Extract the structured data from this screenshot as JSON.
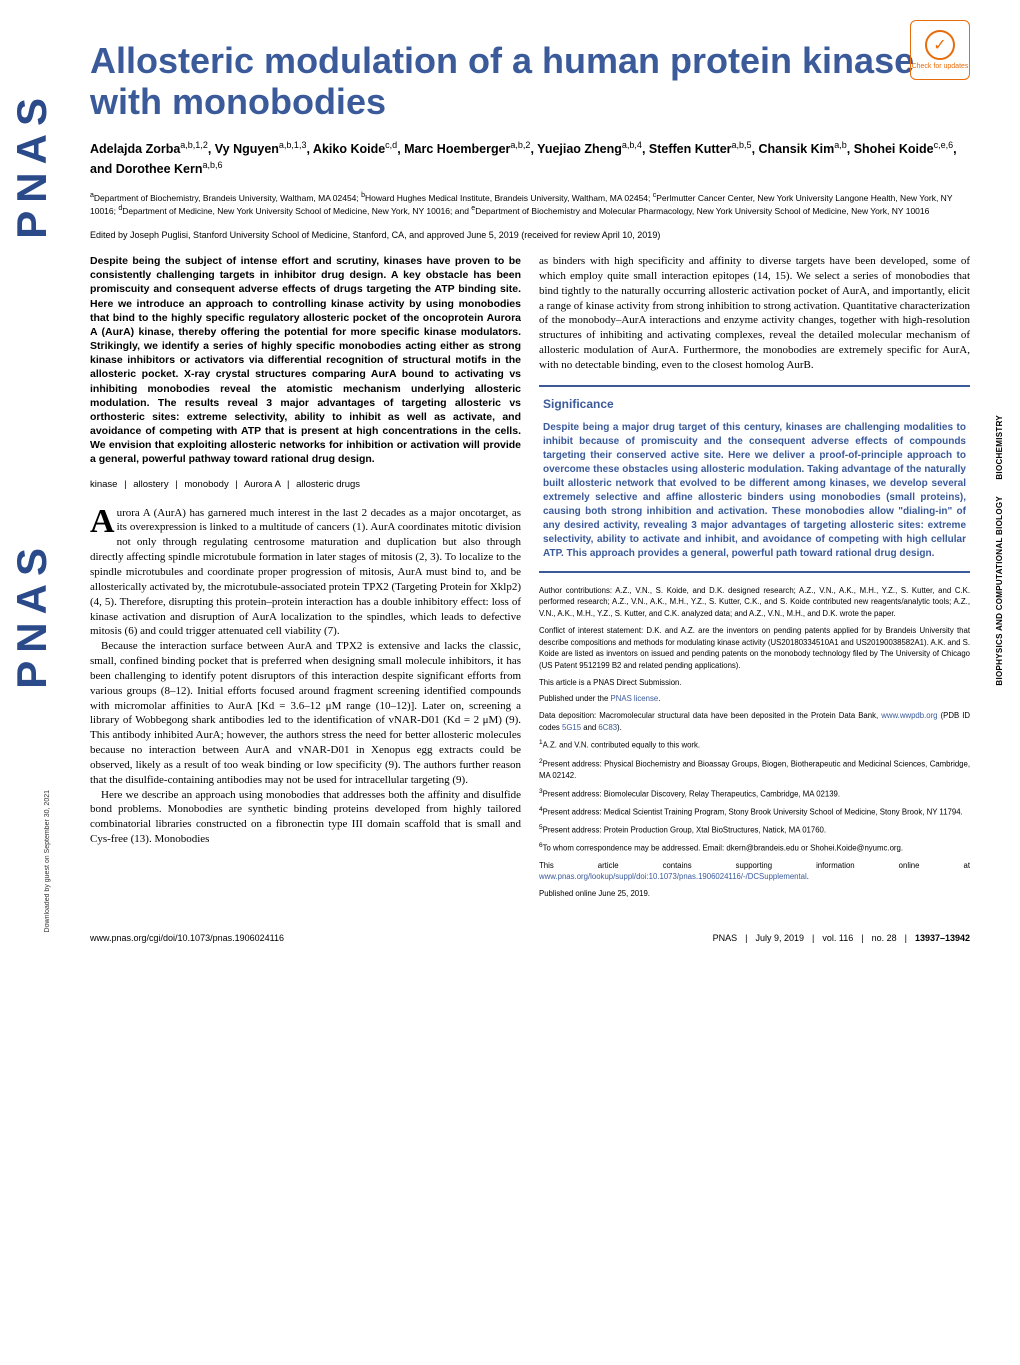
{
  "checkUpdates": "Check for updates",
  "sideLogo": "PNAS",
  "downloadNote": "Downloaded by guest on September 30, 2021",
  "title": "Allosteric modulation of a human protein kinase with monobodies",
  "authorsHtml": "Adelajda Zorba<sup>a,b,1,2</sup>, Vy Nguyen<sup>a,b,1,3</sup>, Akiko Koide<sup>c,d</sup>, Marc Hoemberger<sup>a,b,2</sup>, Yuejiao Zheng<sup>a,b,4</sup>, Steffen Kutter<sup>a,b,5</sup>, Chansik Kim<sup>a,b</sup>, Shohei Koide<sup>c,e,6</sup>, and Dorothee Kern<sup>a,b,6</sup>",
  "affiliationsHtml": "<sup>a</sup>Department of Biochemistry, Brandeis University, Waltham, MA 02454; <sup>b</sup>Howard Hughes Medical Institute, Brandeis University, Waltham, MA 02454; <sup>c</sup>Perlmutter Cancer Center, New York University Langone Health, New York, NY 10016; <sup>d</sup>Department of Medicine, New York University School of Medicine, New York, NY 10016; and <sup>e</sup>Department of Biochemistry and Molecular Pharmacology, New York University School of Medicine, New York, NY 10016",
  "editedBy": "Edited by Joseph Puglisi, Stanford University School of Medicine, Stanford, CA, and approved June 5, 2019 (received for review April 10, 2019)",
  "abstract": "Despite being the subject of intense effort and scrutiny, kinases have proven to be consistently challenging targets in inhibitor drug design. A key obstacle has been promiscuity and consequent adverse effects of drugs targeting the ATP binding site. Here we introduce an approach to controlling kinase activity by using monobodies that bind to the highly specific regulatory allosteric pocket of the oncoprotein Aurora A (AurA) kinase, thereby offering the potential for more specific kinase modulators. Strikingly, we identify a series of highly specific monobodies acting either as strong kinase inhibitors or activators via differential recognition of structural motifs in the allosteric pocket. X-ray crystal structures comparing AurA bound to activating vs inhibiting monobodies reveal the atomistic mechanism underlying allosteric modulation. The results reveal 3 major advantages of targeting allosteric vs orthosteric sites: extreme selectivity, ability to inhibit as well as activate, and avoidance of competing with ATP that is present at high concentrations in the cells. We envision that exploiting allosteric networks for inhibition or activation will provide a general, powerful pathway toward rational drug design.",
  "keywords": [
    "kinase",
    "allostery",
    "monobody",
    "Aurora A",
    "allosteric drugs"
  ],
  "introFirst": "urora A (AurA) has garnered much interest in the last 2 decades as a major oncotarget, as its overexpression is linked to a multitude of cancers (1). AurA coordinates mitotic division not only through regulating centrosome maturation and duplication but also through directly affecting spindle microtubule formation in later stages of mitosis (2, 3). To localize to the spindle microtubules and coordinate proper progression of mitosis, AurA must bind to, and be allosterically activated by, the microtubule-associated protein TPX2 (Targeting Protein for Xklp2) (4, 5). Therefore, disrupting this protein–protein interaction has a double inhibitory effect: loss of kinase activation and disruption of AurA localization to the spindles, which leads to defective mitosis (6) and could trigger attenuated cell viability (7).",
  "introP2": "Because the interaction surface between AurA and TPX2 is extensive and lacks the classic, small, confined binding pocket that is preferred when designing small molecule inhibitors, it has been challenging to identify potent disruptors of this interaction despite significant efforts from various groups (8–12). Initial efforts focused around fragment screening identified compounds with micromolar affinities to AurA [Kd = 3.6–12 μM range (10–12)]. Later on, screening a library of Wobbegong shark antibodies led to the identification of vNAR-D01 (Kd = 2 μM) (9). This antibody inhibited AurA; however, the authors stress the need for better allosteric molecules because no interaction between AurA and vNAR-D01 in Xenopus egg extracts could be observed, likely as a result of too weak binding or low specificity (9). The authors further reason that the disulfide-containing antibodies may not be used for intracellular targeting (9).",
  "introP3": "Here we describe an approach using monobodies that addresses both the affinity and disulfide bond problems. Monobodies are synthetic binding proteins developed from highly tailored combinatorial libraries constructed on a fibronectin type III domain scaffold that is small and Cys-free (13). Monobodies",
  "col2Intro": "as binders with high specificity and affinity to diverse targets have been developed, some of which employ quite small interaction epitopes (14, 15). We select a series of monobodies that bind tightly to the naturally occurring allosteric activation pocket of AurA, and importantly, elicit a range of kinase activity from strong inhibition to strong activation. Quantitative characterization of the monobody–AurA interactions and enzyme activity changes, together with high-resolution structures of inhibiting and activating complexes, reveal the detailed molecular mechanism of allosteric modulation of AurA. Furthermore, the monobodies are extremely specific for AurA, with no detectable binding, even to the closest homolog AurB.",
  "significanceTitle": "Significance",
  "significanceText": "Despite being a major drug target of this century, kinases are challenging modalities to inhibit because of promiscuity and the consequent adverse effects of compounds targeting their conserved active site. Here we deliver a proof-of-principle approach to overcome these obstacles using allosteric modulation. Taking advantage of the naturally built allosteric network that evolved to be different among kinases, we develop several extremely selective and affine allosteric binders using monobodies (small proteins), causing both strong inhibition and activation. These monobodies allow \"dialing-in\" of any desired activity, revealing 3 major advantages of targeting allosteric sites: extreme selectivity, ability to activate and inhibit, and avoidance of competing with high cellular ATP. This approach provides a general, powerful path toward rational drug design.",
  "footnotes": {
    "authorContrib": "Author contributions: A.Z., V.N., S. Koide, and D.K. designed research; A.Z., V.N., A.K., M.H., Y.Z., S. Kutter, and C.K. performed research; A.Z., V.N., A.K., M.H., Y.Z., S. Kutter, C.K., and S. Koide contributed new reagents/analytic tools; A.Z., V.N., A.K., M.H., Y.Z., S. Kutter, and C.K. analyzed data; and A.Z., V.N., M.H., and D.K. wrote the paper.",
    "conflict": "Conflict of interest statement: D.K. and A.Z. are the inventors on pending patents applied for by Brandeis University that describe compositions and methods for modulating kinase activity (US20180334510A1 and US20190038582A1). A.K. and S. Koide are listed as inventors on issued and pending patents on the monobody technology filed by The University of Chicago (US Patent 9512199 B2 and related pending applications).",
    "direct": "This article is a PNAS Direct Submission.",
    "licenseText": "Published under the ",
    "licenseLink": "PNAS license",
    "dataDep": "Data deposition: Macromolecular structural data have been deposited in the Protein Data Bank, ",
    "dataLink1": "www.wwpdb.org",
    "dataDep2": " (PDB ID codes ",
    "pdb1": "5G15",
    "dataDep3": " and ",
    "pdb2": "6C83",
    "dataDep4": ").",
    "n1": "A.Z. and V.N. contributed equally to this work.",
    "n2": "Present address: Physical Biochemistry and Bioassay Groups, Biogen, Biotherapeutic and Medicinal Sciences, Cambridge, MA 02142.",
    "n3": "Present address: Biomolecular Discovery, Relay Therapeutics, Cambridge, MA 02139.",
    "n4": "Present address: Medical Scientist Training Program, Stony Brook University School of Medicine, Stony Brook, NY 11794.",
    "n5": "Present address: Protein Production Group, Xtal BioStructures, Natick, MA 01760.",
    "n6": "To whom correspondence may be addressed. Email: dkern@brandeis.edu or Shohei.Koide@nyumc.org.",
    "suppText": "This article contains supporting information online at ",
    "suppLink": "www.pnas.org/lookup/suppl/doi:10.1073/pnas.1906024116/-/DCSupplemental",
    "pubOnline": "Published online June 25, 2019."
  },
  "footer": {
    "doi": "www.pnas.org/cgi/doi/10.1073/pnas.1906024116",
    "journal": "PNAS",
    "date": "July 9, 2019",
    "vol": "vol. 116",
    "no": "no. 28",
    "pages": "13937–13942"
  },
  "sideLabels": {
    "s1": "BIOCHEMISTRY",
    "s2": "BIOPHYSICS AND COMPUTATIONAL BIOLOGY"
  }
}
